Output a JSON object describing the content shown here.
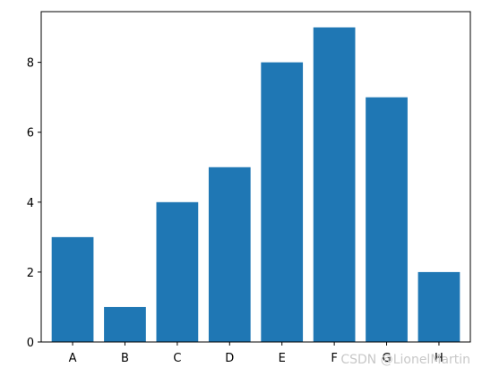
{
  "chart_data": {
    "type": "bar",
    "title": "",
    "xlabel": "",
    "ylabel": "",
    "categories": [
      "A",
      "B",
      "C",
      "D",
      "E",
      "F",
      "G",
      "H"
    ],
    "values": [
      3,
      1,
      4,
      5,
      8,
      9,
      7,
      2
    ],
    "ylim": [
      0,
      9.45
    ],
    "yticks": [
      0,
      2,
      4,
      6,
      8
    ],
    "grid": false,
    "bar_color": "#1f77b4"
  },
  "watermark": {
    "text": "CSDN @LionelMartin",
    "color": "#c8c8c8"
  }
}
